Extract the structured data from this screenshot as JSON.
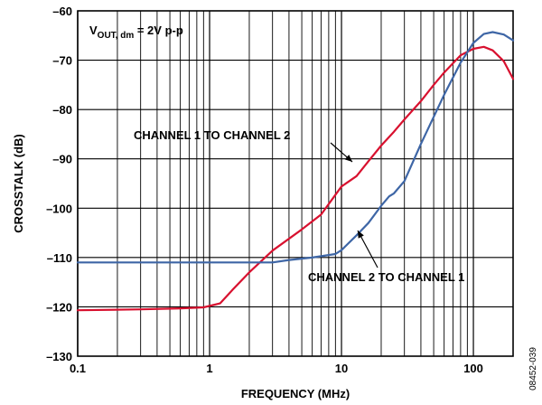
{
  "chart_data": {
    "type": "line",
    "xlabel": "FREQUENCY (MHz)",
    "ylabel": "CROSSTALK (dB)",
    "xscale": "log",
    "xlim": [
      0.1,
      200
    ],
    "ylim": [
      -130,
      -60
    ],
    "grid": true,
    "x_ticks": [
      0.1,
      1,
      10,
      100
    ],
    "x_tick_labels": [
      "0.1",
      "1",
      "10",
      "100"
    ],
    "y_ticks": [
      -60,
      -70,
      -80,
      -90,
      -100,
      -110,
      -120,
      -130
    ],
    "y_tick_labels": [
      "–60",
      "–70",
      "–80",
      "–90",
      "–100",
      "–110",
      "–120",
      "–130"
    ],
    "condition": {
      "main": "V",
      "sub": "OUT, dm",
      "rest": " = 2V p-p"
    },
    "series": [
      {
        "name": "CHANNEL 1 TO CHANNEL 2",
        "color": "#d8112f",
        "x": [
          0.1,
          0.3,
          0.6,
          0.9,
          1.2,
          1.5,
          2.0,
          3.0,
          5.0,
          7.0,
          10,
          13,
          16,
          20,
          25,
          30,
          40,
          50,
          60,
          80,
          100,
          120,
          140,
          170,
          200
        ],
        "y": [
          -120.7,
          -120.5,
          -120.3,
          -120.1,
          -119.3,
          -116.5,
          -113,
          -108.6,
          -104.3,
          -101.3,
          -95.6,
          -93.5,
          -90.5,
          -87.3,
          -84.5,
          -82,
          -78.3,
          -75,
          -72.5,
          -69,
          -67.7,
          -67.3,
          -68,
          -70.2,
          -73.8
        ]
      },
      {
        "name": "CHANNEL 2 TO CHANNEL 1",
        "color": "#3e66a6",
        "x": [
          0.1,
          0.5,
          1,
          2,
          3,
          4,
          6,
          9,
          10,
          13,
          16,
          20,
          23,
          25,
          30,
          40,
          50,
          60,
          80,
          100,
          120,
          140,
          170,
          200
        ],
        "y": [
          -111,
          -111,
          -111,
          -111,
          -111,
          -110.5,
          -110,
          -109.3,
          -108.5,
          -105.5,
          -103,
          -99.5,
          -97.6,
          -97,
          -94.5,
          -87,
          -81.5,
          -77,
          -70.5,
          -66.5,
          -64.7,
          -64.3,
          -64.8,
          -66
        ]
      }
    ],
    "annotations": [
      {
        "text": "CHANNEL 1 TO CHANNEL 2",
        "series": 0
      },
      {
        "text": "CHANNEL 2 TO CHANNEL 1",
        "series": 1
      }
    ],
    "figure_id": "08452-039"
  }
}
